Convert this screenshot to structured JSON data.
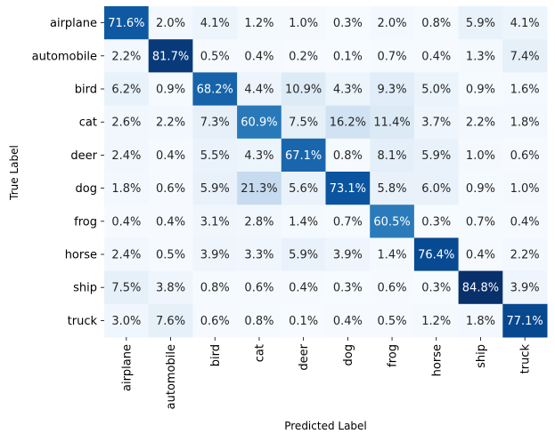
{
  "chart_data": {
    "type": "heatmap",
    "title": "",
    "xlabel": "Predicted Label",
    "ylabel": "True Label",
    "x_categories": [
      "airplane",
      "automobile",
      "bird",
      "cat",
      "deer",
      "dog",
      "frog",
      "horse",
      "ship",
      "truck"
    ],
    "y_categories": [
      "airplane",
      "automobile",
      "bird",
      "cat",
      "deer",
      "dog",
      "frog",
      "horse",
      "ship",
      "truck"
    ],
    "colormap": "Blues",
    "value_range": [
      0,
      84.8
    ],
    "value_format": "percent",
    "values": [
      [
        71.6,
        2.0,
        4.1,
        1.2,
        1.0,
        0.3,
        2.0,
        0.8,
        5.9,
        4.1
      ],
      [
        2.2,
        81.7,
        0.5,
        0.4,
        0.2,
        0.1,
        0.7,
        0.4,
        1.3,
        7.4
      ],
      [
        6.2,
        0.9,
        68.2,
        4.4,
        10.9,
        4.3,
        9.3,
        5.0,
        0.9,
        1.6
      ],
      [
        2.6,
        2.2,
        7.3,
        60.9,
        7.5,
        16.2,
        11.4,
        3.7,
        2.2,
        1.8
      ],
      [
        2.4,
        0.4,
        5.5,
        4.3,
        67.1,
        0.8,
        8.1,
        5.9,
        1.0,
        0.6
      ],
      [
        1.8,
        0.6,
        5.9,
        21.3,
        5.6,
        73.1,
        5.8,
        6.0,
        0.9,
        1.0
      ],
      [
        0.4,
        0.4,
        3.1,
        2.8,
        1.4,
        0.7,
        60.5,
        0.3,
        0.7,
        0.4
      ],
      [
        2.4,
        0.5,
        3.9,
        3.3,
        5.9,
        3.9,
        1.4,
        76.4,
        0.4,
        2.2
      ],
      [
        7.5,
        3.8,
        0.8,
        0.6,
        0.4,
        0.3,
        0.6,
        0.3,
        84.8,
        3.9
      ],
      [
        3.0,
        7.6,
        0.6,
        0.8,
        0.1,
        0.4,
        0.5,
        1.2,
        1.8,
        77.1
      ]
    ]
  }
}
